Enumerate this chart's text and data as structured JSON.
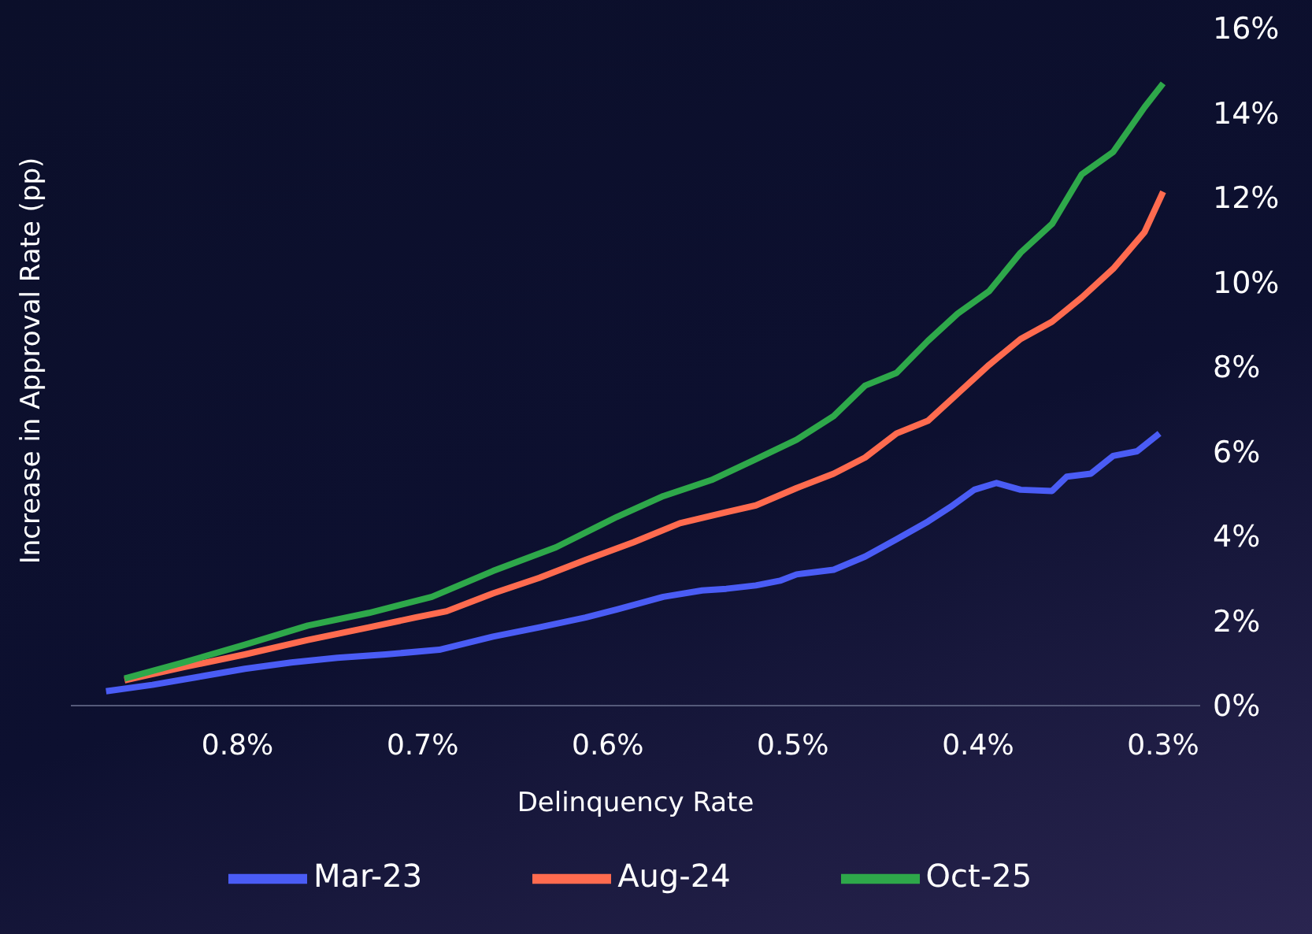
{
  "chart_data": {
    "type": "line",
    "xlabel": "Delinquency Rate",
    "ylabel": "Increase in Approval Rate (pp)",
    "xlim": [
      0.89,
      0.28
    ],
    "xticks": [
      {
        "value": 0.8,
        "label": "0.8%"
      },
      {
        "value": 0.7,
        "label": "0.7%"
      },
      {
        "value": 0.6,
        "label": "0.6%"
      },
      {
        "value": 0.5,
        "label": "0.5%"
      },
      {
        "value": 0.4,
        "label": "0.4%"
      },
      {
        "value": 0.3,
        "label": "0.3%"
      }
    ],
    "ylim": [
      0,
      16
    ],
    "yticks": [
      {
        "value": 0,
        "label": "0%"
      },
      {
        "value": 2,
        "label": "2%"
      },
      {
        "value": 4,
        "label": "4%"
      },
      {
        "value": 6,
        "label": "6%"
      },
      {
        "value": 8,
        "label": "8%"
      },
      {
        "value": 10,
        "label": "10%"
      },
      {
        "value": 12,
        "label": "12%"
      },
      {
        "value": 14,
        "label": "14%"
      },
      {
        "value": 16,
        "label": "16%"
      }
    ],
    "grid": false,
    "legend": "bottom",
    "marker": "none",
    "line_style": "solid",
    "series": [
      {
        "name": "Mar-23",
        "color": "#4a5cf5",
        "x": [
          0.871,
          0.846,
          0.821,
          0.796,
          0.771,
          0.746,
          0.72,
          0.691,
          0.662,
          0.637,
          0.612,
          0.595,
          0.57,
          0.549,
          0.536,
          0.52,
          0.507,
          0.498,
          0.478,
          0.461,
          0.444,
          0.427,
          0.415,
          0.402,
          0.39,
          0.377,
          0.36,
          0.352,
          0.339,
          0.327,
          0.314,
          0.302
        ],
        "values": [
          0.34,
          0.49,
          0.68,
          0.87,
          1.02,
          1.13,
          1.21,
          1.32,
          1.63,
          1.85,
          2.08,
          2.27,
          2.57,
          2.72,
          2.76,
          2.84,
          2.95,
          3.1,
          3.21,
          3.52,
          3.93,
          4.35,
          4.69,
          5.1,
          5.26,
          5.1,
          5.07,
          5.41,
          5.48,
          5.9,
          6.01,
          6.43
        ]
      },
      {
        "name": "Aug-24",
        "color": "#ff6b4f",
        "x": [
          0.861,
          0.829,
          0.796,
          0.762,
          0.729,
          0.704,
          0.687,
          0.662,
          0.637,
          0.612,
          0.586,
          0.561,
          0.536,
          0.52,
          0.498,
          0.478,
          0.461,
          0.444,
          0.427,
          0.411,
          0.394,
          0.377,
          0.36,
          0.344,
          0.327,
          0.31,
          0.3
        ],
        "values": [
          0.6,
          0.91,
          1.21,
          1.55,
          1.85,
          2.08,
          2.23,
          2.65,
          3.02,
          3.44,
          3.86,
          4.31,
          4.57,
          4.73,
          5.14,
          5.48,
          5.86,
          6.43,
          6.73,
          7.37,
          8.05,
          8.66,
          9.07,
          9.64,
          10.32,
          11.19,
          12.14
        ]
      },
      {
        "name": "Oct-25",
        "color": "#2ea84a",
        "x": [
          0.861,
          0.829,
          0.796,
          0.762,
          0.729,
          0.695,
          0.662,
          0.628,
          0.595,
          0.57,
          0.544,
          0.52,
          0.498,
          0.478,
          0.461,
          0.444,
          0.427,
          0.411,
          0.394,
          0.377,
          0.36,
          0.344,
          0.327,
          0.31,
          0.3
        ],
        "values": [
          0.64,
          1.02,
          1.44,
          1.89,
          2.19,
          2.57,
          3.18,
          3.74,
          4.46,
          4.95,
          5.33,
          5.82,
          6.28,
          6.84,
          7.56,
          7.86,
          8.62,
          9.26,
          9.79,
          10.7,
          11.38,
          12.55,
          13.08,
          14.14,
          14.7
        ]
      }
    ]
  }
}
